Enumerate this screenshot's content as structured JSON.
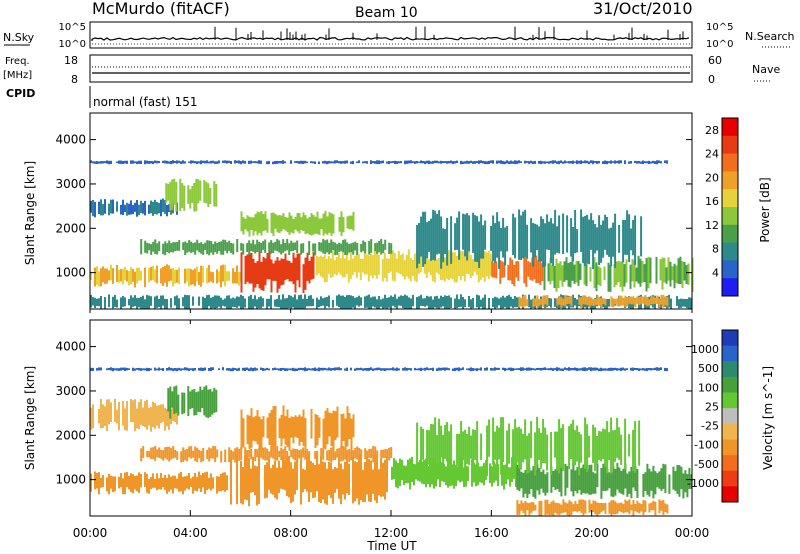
{
  "header": {
    "station": "McMurdo (fitACF)",
    "beam": "Beam 10",
    "date": "31/Oct/2010"
  },
  "aux_panels": {
    "nsky_label": "N.Sky",
    "nsky_ticks": [
      "10^5",
      "10^0"
    ],
    "nsearch_label": "N.Search",
    "nsearch_ticks": [
      "10^5",
      "10^0"
    ],
    "freq_label_1": "Freq.",
    "freq_label_2": "[MHz]",
    "freq_ticks": [
      "18",
      "8"
    ],
    "nave_label": "Nave",
    "nave_ticks": [
      "60",
      "0"
    ],
    "cpid_label": "CPID",
    "cpid_value": "normal (fast) 151"
  },
  "chart_data": [
    {
      "type": "heatmap",
      "title": "",
      "xlabel": "",
      "ylabel": "Slant Range [km]",
      "x_ticks": [
        "00:00",
        "04:00",
        "08:00",
        "12:00",
        "16:00",
        "20:00",
        "00:00"
      ],
      "x_range_hours": [
        0,
        24
      ],
      "y_ticks": [
        1000,
        2000,
        3000,
        4000
      ],
      "ylim": [
        180,
        4600
      ],
      "colorbar": {
        "label": "Power [dB]",
        "ticks": [
          4,
          8,
          12,
          16,
          20,
          24,
          28
        ],
        "range": [
          0,
          30
        ],
        "colors": [
          "#1e1ef0",
          "#2a64c8",
          "#2e8a8a",
          "#4aa04a",
          "#8cc83c",
          "#e6d23c",
          "#f0a028",
          "#f06e1e",
          "#e63c14",
          "#e60000"
        ]
      },
      "bands": [
        {
          "x": [
            0.0,
            6.0
          ],
          "y": [
            750,
            1100
          ],
          "value": 18
        },
        {
          "x": [
            6.0,
            9.0
          ],
          "y": [
            700,
            1350
          ],
          "value": 26
        },
        {
          "x": [
            9.0,
            16.0
          ],
          "y": [
            900,
            1400
          ],
          "value": 16
        },
        {
          "x": [
            16.0,
            18.0
          ],
          "y": [
            800,
            1300
          ],
          "value": 22
        },
        {
          "x": [
            18.0,
            24.0
          ],
          "y": [
            700,
            1250
          ],
          "value": 12
        },
        {
          "x": [
            0.0,
            3.5
          ],
          "y": [
            2300,
            2600
          ],
          "value": 6
        },
        {
          "x": [
            3.0,
            5.0
          ],
          "y": [
            2500,
            3000
          ],
          "value": 14
        },
        {
          "x": [
            6.0,
            10.5
          ],
          "y": [
            1900,
            2300
          ],
          "value": 14
        },
        {
          "x": [
            2.0,
            12.0
          ],
          "y": [
            1450,
            1700
          ],
          "value": 10
        },
        {
          "x": [
            13.0,
            22.0
          ],
          "y": [
            1300,
            2200
          ],
          "value": 7
        },
        {
          "x": [
            0.0,
            24.0
          ],
          "y": [
            200,
            450
          ],
          "value": 8
        },
        {
          "x": [
            17.0,
            23.0
          ],
          "y": [
            250,
            450
          ],
          "value": 20
        },
        {
          "x": [
            0.0,
            23.0
          ],
          "y": [
            3460,
            3520
          ],
          "value": 5
        }
      ]
    },
    {
      "type": "heatmap",
      "title": "",
      "xlabel": "Time UT",
      "ylabel": "Slant Range [km]",
      "x_ticks": [
        "00:00",
        "04:00",
        "08:00",
        "12:00",
        "16:00",
        "20:00",
        "00:00"
      ],
      "x_range_hours": [
        0,
        24
      ],
      "y_ticks": [
        1000,
        2000,
        3000,
        4000
      ],
      "ylim": [
        180,
        4600
      ],
      "colorbar": {
        "label": "Velocity [m s^-1]",
        "ticks": [
          1000,
          500,
          100,
          25,
          -25,
          -100,
          -500,
          -1000
        ],
        "colors": [
          "#e60000",
          "#ee3c14",
          "#f06e1e",
          "#f09628",
          "#f0b450",
          "#bebebe",
          "#64c832",
          "#46a03c",
          "#2e8a6e",
          "#2a64c8",
          "#1e3cb4"
        ]
      },
      "bands": [
        {
          "x": [
            0.0,
            5.5
          ],
          "y": [
            750,
            1100
          ],
          "value": -300
        },
        {
          "x": [
            5.5,
            12.0
          ],
          "y": [
            600,
            1400
          ],
          "value": -250
        },
        {
          "x": [
            12.0,
            17.0
          ],
          "y": [
            900,
            1400
          ],
          "value": 80
        },
        {
          "x": [
            17.0,
            24.0
          ],
          "y": [
            700,
            1250
          ],
          "value": 300
        },
        {
          "x": [
            0.0,
            3.5
          ],
          "y": [
            2200,
            2700
          ],
          "value": -60
        },
        {
          "x": [
            3.0,
            5.0
          ],
          "y": [
            2500,
            3000
          ],
          "value": 150
        },
        {
          "x": [
            6.0,
            10.5
          ],
          "y": [
            1800,
            2500
          ],
          "value": -400
        },
        {
          "x": [
            2.0,
            12.0
          ],
          "y": [
            1450,
            1700
          ],
          "value": -150
        },
        {
          "x": [
            13.0,
            22.0
          ],
          "y": [
            1300,
            2200
          ],
          "value": 60
        },
        {
          "x": [
            17.0,
            23.0
          ],
          "y": [
            250,
            500
          ],
          "value": -400
        },
        {
          "x": [
            0.0,
            23.0
          ],
          "y": [
            3460,
            3520
          ],
          "value": 600
        }
      ]
    }
  ]
}
